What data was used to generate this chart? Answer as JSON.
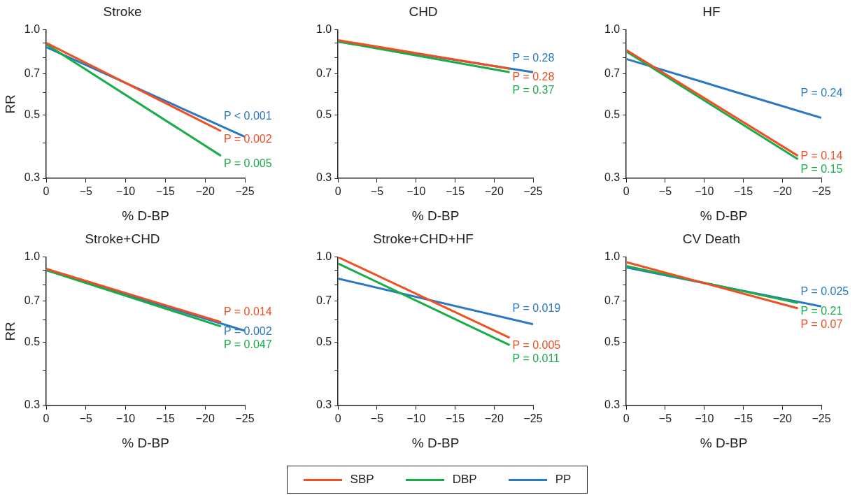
{
  "chart_data": [
    {
      "type": "line",
      "title": "Stroke",
      "xlabel": "% D-BP",
      "ylabel": "RR",
      "log": "y",
      "grid": false,
      "legend": "bottom",
      "marker": "none",
      "line_style": "solid",
      "xlim": [
        0,
        -25
      ],
      "xticks": [
        {
          "value": 0,
          "label": "0"
        },
        {
          "value": -5,
          "label": "−5"
        },
        {
          "value": -10,
          "label": "−10"
        },
        {
          "value": -15,
          "label": "−15"
        },
        {
          "value": -20,
          "label": "−20"
        },
        {
          "value": -25,
          "label": "−25"
        }
      ],
      "ylim": [
        0.3,
        1
      ],
      "yticks": [
        0.3,
        {
          "value": 0.4,
          "label": null
        },
        0.5,
        {
          "value": 0.6,
          "label": null
        },
        0.7,
        {
          "value": 0.8,
          "label": null
        },
        {
          "value": 0.9,
          "label": null
        },
        {
          "value": 1,
          "label": "1.0"
        }
      ],
      "series": [
        {
          "name": "SBP",
          "color": "#f04e23",
          "x": [
            0,
            -22
          ],
          "values": [
            0.9,
            0.44
          ]
        },
        {
          "name": "DBP",
          "color": "#1aab4b",
          "x": [
            0,
            -22
          ],
          "values": [
            0.89,
            0.36
          ]
        },
        {
          "name": "PP",
          "color": "#2a78c2",
          "x": [
            0,
            -25
          ],
          "values": [
            0.87,
            0.42
          ]
        }
      ],
      "annotations": [
        "P = 0.002",
        "P = 0.005",
        "P < 0.001"
      ]
    },
    {
      "type": "line",
      "title": "CHD",
      "xlabel": "% D-BP",
      "log": "y",
      "grid": false,
      "legend": "bottom",
      "marker": "none",
      "line_style": "solid",
      "xlim": [
        0,
        -25
      ],
      "xticks": [
        {
          "value": 0,
          "label": "0"
        },
        {
          "value": -5,
          "label": "−5"
        },
        {
          "value": -10,
          "label": "−10"
        },
        {
          "value": -15,
          "label": "−15"
        },
        {
          "value": -20,
          "label": "−20"
        },
        {
          "value": -25,
          "label": "−25"
        }
      ],
      "ylim": [
        0.3,
        1
      ],
      "yticks": [
        0.3,
        {
          "value": 0.4,
          "label": null
        },
        0.5,
        {
          "value": 0.6,
          "label": null
        },
        0.7,
        {
          "value": 0.8,
          "label": null
        },
        {
          "value": 0.9,
          "label": null
        },
        {
          "value": 1,
          "label": "1.0"
        }
      ],
      "series": [
        {
          "name": "SBP",
          "color": "#f04e23",
          "x": [
            0,
            -22
          ],
          "values": [
            0.92,
            0.73
          ]
        },
        {
          "name": "DBP",
          "color": "#1aab4b",
          "x": [
            0,
            -22
          ],
          "values": [
            0.91,
            0.71
          ]
        },
        {
          "name": "PP",
          "color": "#2a78c2",
          "x": [
            0,
            -25
          ],
          "values": [
            0.91,
            0.71
          ]
        }
      ],
      "annotations": [
        "P = 0.28",
        "P = 0.37",
        "P = 0.28"
      ]
    },
    {
      "type": "line",
      "title": "HF",
      "xlabel": "% D-BP",
      "log": "y",
      "grid": false,
      "legend": "bottom",
      "marker": "none",
      "line_style": "solid",
      "xlim": [
        0,
        -25
      ],
      "xticks": [
        {
          "value": 0,
          "label": "0"
        },
        {
          "value": -5,
          "label": "−5"
        },
        {
          "value": -10,
          "label": "−10"
        },
        {
          "value": -15,
          "label": "−15"
        },
        {
          "value": -20,
          "label": "−20"
        },
        {
          "value": -25,
          "label": "−25"
        }
      ],
      "ylim": [
        0.3,
        1
      ],
      "yticks": [
        0.3,
        {
          "value": 0.4,
          "label": null
        },
        0.5,
        {
          "value": 0.6,
          "label": null
        },
        0.7,
        {
          "value": 0.8,
          "label": null
        },
        {
          "value": 0.9,
          "label": null
        },
        {
          "value": 1,
          "label": "1.0"
        }
      ],
      "series": [
        {
          "name": "SBP",
          "color": "#f04e23",
          "x": [
            0,
            -22
          ],
          "values": [
            0.85,
            0.36
          ]
        },
        {
          "name": "DBP",
          "color": "#1aab4b",
          "x": [
            0,
            -22
          ],
          "values": [
            0.84,
            0.35
          ]
        },
        {
          "name": "PP",
          "color": "#2a78c2",
          "x": [
            0,
            -25
          ],
          "values": [
            0.79,
            0.49
          ]
        }
      ],
      "annotations": [
        "P = 0.14",
        "P = 0.15",
        "P = 0.24"
      ]
    },
    {
      "type": "line",
      "title": "Stroke+CHD",
      "xlabel": "% D-BP",
      "ylabel": "RR",
      "log": "y",
      "grid": false,
      "legend": "bottom",
      "marker": "none",
      "line_style": "solid",
      "xlim": [
        0,
        -25
      ],
      "xticks": [
        {
          "value": 0,
          "label": "0"
        },
        {
          "value": -5,
          "label": "−5"
        },
        {
          "value": -10,
          "label": "−10"
        },
        {
          "value": -15,
          "label": "−15"
        },
        {
          "value": -20,
          "label": "−20"
        },
        {
          "value": -25,
          "label": "−25"
        }
      ],
      "ylim": [
        0.3,
        1
      ],
      "yticks": [
        0.3,
        {
          "value": 0.4,
          "label": null
        },
        0.5,
        {
          "value": 0.6,
          "label": null
        },
        0.7,
        {
          "value": 0.8,
          "label": null
        },
        {
          "value": 0.9,
          "label": null
        },
        {
          "value": 1,
          "label": "1.0"
        }
      ],
      "series": [
        {
          "name": "SBP",
          "color": "#f04e23",
          "x": [
            0,
            -22
          ],
          "values": [
            0.91,
            0.59
          ]
        },
        {
          "name": "DBP",
          "color": "#1aab4b",
          "x": [
            0,
            -22
          ],
          "values": [
            0.9,
            0.57
          ]
        },
        {
          "name": "PP",
          "color": "#2a78c2",
          "x": [
            0,
            -25
          ],
          "values": [
            0.9,
            0.55
          ]
        }
      ],
      "annotations": [
        "P = 0.014",
        "P = 0.047",
        "P = 0.002"
      ]
    },
    {
      "type": "line",
      "title": "Stroke+CHD+HF",
      "xlabel": "% D-BP",
      "log": "y",
      "grid": false,
      "legend": "bottom",
      "marker": "none",
      "line_style": "solid",
      "xlim": [
        0,
        -25
      ],
      "xticks": [
        {
          "value": 0,
          "label": "0"
        },
        {
          "value": -5,
          "label": "−5"
        },
        {
          "value": -10,
          "label": "−10"
        },
        {
          "value": -15,
          "label": "−15"
        },
        {
          "value": -20,
          "label": "−20"
        },
        {
          "value": -25,
          "label": "−25"
        }
      ],
      "ylim": [
        0.3,
        1
      ],
      "yticks": [
        0.3,
        {
          "value": 0.4,
          "label": null
        },
        0.5,
        {
          "value": 0.6,
          "label": null
        },
        0.7,
        {
          "value": 0.8,
          "label": null
        },
        {
          "value": 0.9,
          "label": null
        },
        {
          "value": 1,
          "label": "1.0"
        }
      ],
      "series": [
        {
          "name": "SBP",
          "color": "#f04e23",
          "x": [
            0,
            -22
          ],
          "values": [
            1,
            0.52
          ]
        },
        {
          "name": "DBP",
          "color": "#1aab4b",
          "x": [
            0,
            -22
          ],
          "values": [
            0.95,
            0.49
          ]
        },
        {
          "name": "PP",
          "color": "#2a78c2",
          "x": [
            0,
            -25
          ],
          "values": [
            0.84,
            0.58
          ]
        }
      ],
      "annotations": [
        "P = 0.005",
        "P = 0.011",
        "P = 0.019"
      ]
    },
    {
      "type": "line",
      "title": "CV Death",
      "xlabel": "% D-BP",
      "log": "y",
      "grid": false,
      "legend": "bottom",
      "marker": "none",
      "line_style": "solid",
      "xlim": [
        0,
        -25
      ],
      "xticks": [
        {
          "value": 0,
          "label": "0"
        },
        {
          "value": -5,
          "label": "−5"
        },
        {
          "value": -10,
          "label": "−10"
        },
        {
          "value": -15,
          "label": "−15"
        },
        {
          "value": -20,
          "label": "−20"
        },
        {
          "value": -25,
          "label": "−25"
        }
      ],
      "ylim": [
        0.3,
        1
      ],
      "yticks": [
        0.3,
        {
          "value": 0.4,
          "label": null
        },
        0.5,
        {
          "value": 0.6,
          "label": null
        },
        0.7,
        {
          "value": 0.8,
          "label": null
        },
        {
          "value": 0.9,
          "label": null
        },
        {
          "value": 1,
          "label": "1.0"
        }
      ],
      "series": [
        {
          "name": "SBP",
          "color": "#f04e23",
          "x": [
            0,
            -22
          ],
          "values": [
            0.96,
            0.66
          ]
        },
        {
          "name": "DBP",
          "color": "#1aab4b",
          "x": [
            0,
            -22
          ],
          "values": [
            0.93,
            0.69
          ]
        },
        {
          "name": "PP",
          "color": "#2a78c2",
          "x": [
            0,
            -25
          ],
          "values": [
            0.92,
            0.67
          ]
        }
      ],
      "annotations": [
        "P = 0.07",
        "P = 0.21",
        "P = 0.025"
      ]
    }
  ]
}
